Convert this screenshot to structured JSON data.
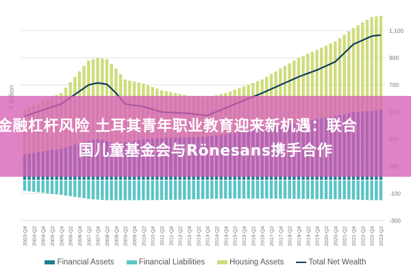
{
  "banner": {
    "line1": "金融杠杆风险 土耳其青年职业教育迎来新机遇：联合",
    "line2": "国儿童基金会与Rönesans携手合作"
  },
  "chart_data": {
    "type": "bar",
    "stacked": true,
    "title": "",
    "xlabel": "",
    "ylabel": "€ Billion",
    "ylim": [
      -300,
      1200
    ],
    "yticks": [
      -300,
      -100,
      100,
      300,
      500,
      700,
      900,
      1100
    ],
    "ytick_labels": [
      "-300",
      "-100",
      "100",
      "300",
      "500",
      "700",
      "900",
      "1,100"
    ],
    "grid": true,
    "legend_position": "bottom",
    "categories": [
      "2003-Q4",
      "2004-Q1",
      "2004-Q2",
      "2004-Q3",
      "2004-Q4",
      "2005-Q1",
      "2005-Q2",
      "2005-Q3",
      "2005-Q4",
      "2006-Q1",
      "2006-Q2",
      "2006-Q3",
      "2006-Q4",
      "2007-Q1",
      "2007-Q2",
      "2007-Q3",
      "2007-Q4",
      "2008-Q1",
      "2008-Q2",
      "2008-Q3",
      "2008-Q4",
      "2009-Q1",
      "2009-Q2",
      "2009-Q3",
      "2009-Q4",
      "2010-Q1",
      "2010-Q2",
      "2010-Q3",
      "2010-Q4",
      "2011-Q1",
      "2011-Q2",
      "2011-Q3",
      "2011-Q4",
      "2012-Q1",
      "2012-Q2",
      "2012-Q3",
      "2012-Q4",
      "2013-Q1",
      "2013-Q2",
      "2013-Q3",
      "2013-Q4",
      "2014-Q1",
      "2014-Q2",
      "2014-Q3",
      "2014-Q4",
      "2015-Q1",
      "2015-Q2",
      "2015-Q3",
      "2015-Q4",
      "2016-Q1",
      "2016-Q2",
      "2016-Q3",
      "2016-Q4",
      "2017-Q1",
      "2017-Q2",
      "2017-Q3",
      "2017-Q4",
      "2018-Q1",
      "2018-Q2",
      "2018-Q3",
      "2018-Q4",
      "2019-Q1",
      "2019-Q2",
      "2019-Q3",
      "2019-Q4",
      "2020-Q1",
      "2020-Q2",
      "2020-Q3",
      "2020-Q4",
      "2021-Q1",
      "2021-Q2",
      "2021-Q3",
      "2021-Q4",
      "2022-Q1",
      "2022-Q2",
      "2022-Q3",
      "2022-Q4",
      "2023-Q1",
      "2023-Q2"
    ],
    "series": [
      {
        "name": "Financial Assets",
        "type": "bar",
        "color": "#1f7f95",
        "values": [
          190,
          195,
          200,
          205,
          210,
          215,
          220,
          225,
          230,
          240,
          250,
          260,
          270,
          280,
          290,
          295,
          300,
          295,
          290,
          280,
          270,
          275,
          280,
          285,
          290,
          295,
          300,
          302,
          305,
          307,
          310,
          311,
          312,
          312,
          313,
          314,
          315,
          316,
          317,
          319,
          320,
          324,
          328,
          331,
          335,
          341,
          346,
          352,
          357,
          363,
          369,
          374,
          380,
          385,
          390,
          395,
          400,
          405,
          410,
          415,
          420,
          428,
          435,
          443,
          450,
          455,
          460,
          465,
          470,
          478,
          485,
          493,
          500,
          503,
          505,
          508,
          510,
          515,
          520
        ]
      },
      {
        "name": "Financial Liabilities",
        "type": "bar",
        "color": "#5bc4c4",
        "values": [
          -80,
          -84,
          -88,
          -91,
          -95,
          -99,
          -103,
          -106,
          -110,
          -115,
          -120,
          -125,
          -130,
          -135,
          -140,
          -143,
          -145,
          -148,
          -150,
          -150,
          -150,
          -150,
          -150,
          -150,
          -150,
          -150,
          -150,
          -150,
          -149,
          -149,
          -148,
          -148,
          -147,
          -147,
          -146,
          -146,
          -145,
          -144,
          -143,
          -141,
          -140,
          -140,
          -139,
          -139,
          -138,
          -138,
          -138,
          -138,
          -138,
          -138,
          -138,
          -138,
          -138,
          -138,
          -138,
          -139,
          -139,
          -139,
          -139,
          -140,
          -140,
          -140,
          -141,
          -141,
          -142,
          -142,
          -142,
          -142,
          -142,
          -143,
          -143,
          -144,
          -145,
          -146,
          -148,
          -149,
          -150,
          -150,
          -150
        ]
      },
      {
        "name": "Housing Assets",
        "type": "bar",
        "color": "#cfdc7c",
        "values": [
          330,
          340,
          350,
          360,
          370,
          380,
          390,
          400,
          410,
          440,
          470,
          500,
          530,
          560,
          590,
          595,
          600,
          600,
          600,
          575,
          550,
          505,
          460,
          447,
          435,
          422,
          410,
          396,
          380,
          366,
          350,
          342,
          335,
          328,
          320,
          313,
          305,
          302,
          298,
          294,
          290,
          294,
          297,
          302,
          305,
          311,
          319,
          326,
          333,
          339,
          346,
          354,
          360,
          375,
          390,
          405,
          420,
          435,
          450,
          465,
          480,
          487,
          495,
          502,
          510,
          520,
          530,
          540,
          550,
          567,
          585,
          602,
          620,
          637,
          655,
          672,
          690,
          690,
          690
        ]
      },
      {
        "name": "Total Net Wealth",
        "type": "line",
        "color": "#0d3b5a",
        "values": [
          470,
          481,
          493,
          504,
          515,
          526,
          538,
          549,
          560,
          583,
          607,
          630,
          653,
          677,
          700,
          708,
          715,
          710,
          705,
          673,
          640,
          600,
          560,
          555,
          550,
          545,
          540,
          530,
          520,
          510,
          500,
          498,
          497,
          495,
          493,
          492,
          490,
          486,
          482,
          479,
          475,
          489,
          503,
          516,
          530,
          544,
          558,
          571,
          585,
          599,
          613,
          626,
          640,
          655,
          670,
          685,
          700,
          715,
          730,
          745,
          760,
          773,
          785,
          798,
          810,
          825,
          840,
          855,
          870,
          903,
          935,
          968,
          1000,
          1015,
          1030,
          1045,
          1060,
          1064,
          1068
        ]
      }
    ]
  }
}
